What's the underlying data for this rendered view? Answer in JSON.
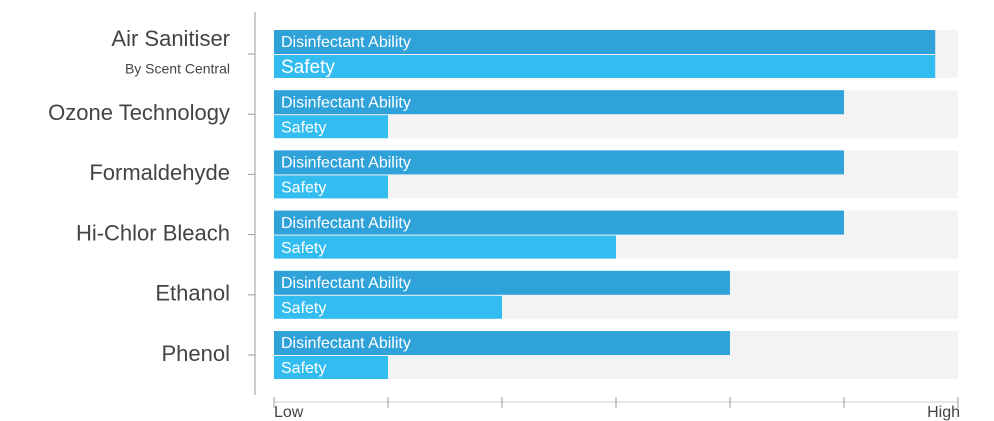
{
  "chart_data": {
    "type": "bar",
    "orientation": "horizontal",
    "categories": [
      "Air Sanitiser",
      "Ozone Technology",
      "Formaldehyde",
      "Hi-Chlor Bleach",
      "Ethanol",
      "Phenol"
    ],
    "category_subtitles": [
      "By Scent Central",
      null,
      null,
      null,
      null,
      null
    ],
    "series": [
      {
        "name": "Disinfectant Ability",
        "color": "#2fa2da",
        "values": [
          5.8,
          5,
          5,
          5,
          4,
          4
        ]
      },
      {
        "name": "Safety",
        "color": "#33bcf0",
        "values": [
          5.8,
          1,
          1,
          3,
          2,
          1
        ]
      }
    ],
    "xlim": [
      0,
      6
    ],
    "xticks": [
      {
        "value": 0,
        "label": "Low"
      },
      {
        "value": 6,
        "label": "High"
      }
    ],
    "minor_xticks": [
      1,
      2,
      3,
      4,
      5
    ],
    "track_color": "#f3f3f3"
  }
}
